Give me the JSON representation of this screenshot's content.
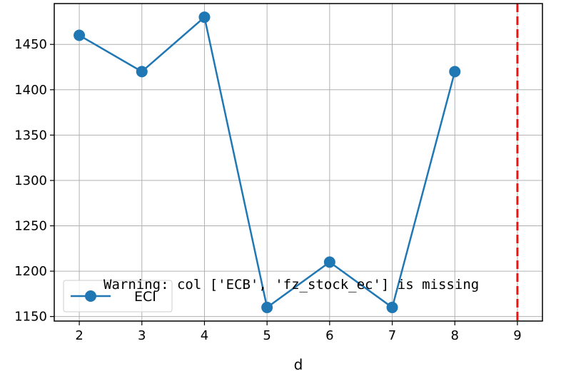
{
  "chart_data": {
    "type": "line",
    "x": [
      2,
      3,
      4,
      5,
      6,
      7,
      8
    ],
    "series": [
      {
        "name": "ECI",
        "values": [
          1460,
          1420,
          1480,
          1160,
          1210,
          1160,
          1420
        ],
        "color": "#1f77b4",
        "marker": "circle"
      }
    ],
    "xlabel": "d",
    "ylabel": "",
    "xlim": [
      1.6,
      9.4
    ],
    "ylim": [
      1145,
      1495
    ],
    "xticks": [
      2,
      3,
      4,
      5,
      6,
      7,
      8,
      9
    ],
    "yticks": [
      1150,
      1200,
      1250,
      1300,
      1350,
      1400,
      1450
    ],
    "grid": true,
    "vline": {
      "x": 9,
      "color": "#ee1111",
      "style": "dashed"
    },
    "legend": {
      "position": "lower-left"
    },
    "annotation": "Warning: col ['ECB', 'fz_stock_ec'] is missing"
  }
}
